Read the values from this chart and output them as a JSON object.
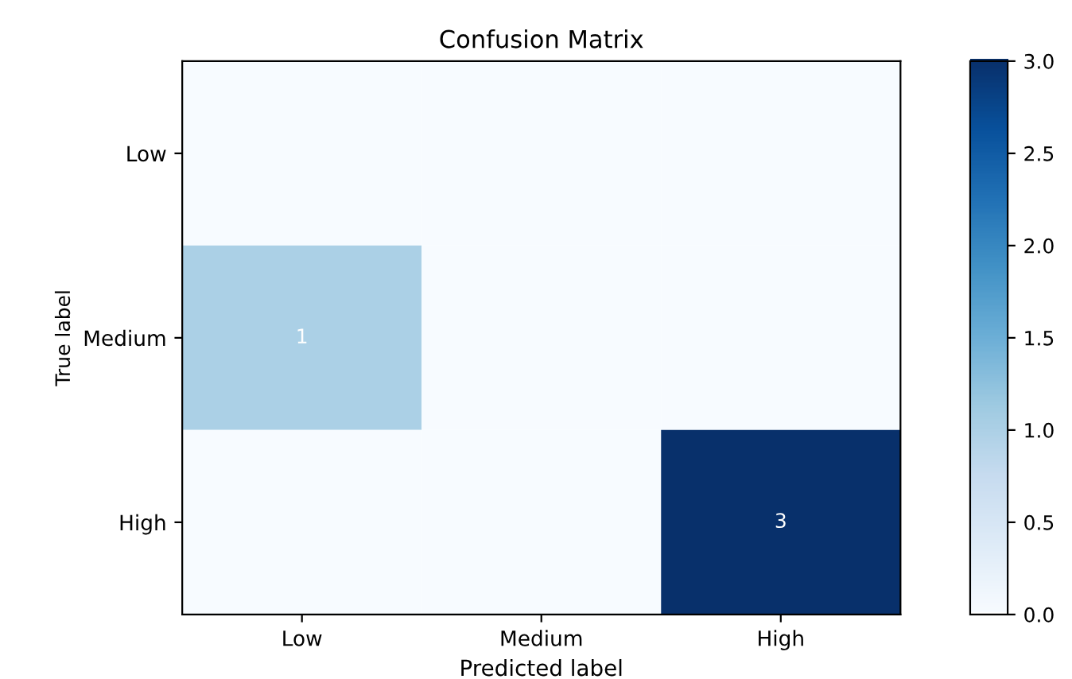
{
  "chart_data": {
    "type": "heatmap",
    "title": "Confusion Matrix",
    "xlabel": "Predicted label",
    "ylabel": "True label",
    "categories": [
      "Low",
      "Medium",
      "High"
    ],
    "y_categories": [
      "Low",
      "Medium",
      "High"
    ],
    "cells": [
      [
        0,
        0,
        0
      ],
      [
        1,
        0,
        0
      ],
      [
        0,
        0,
        3
      ]
    ],
    "cell_labels": [
      [
        null,
        null,
        null
      ],
      [
        "1",
        null,
        null
      ],
      [
        null,
        null,
        "3"
      ]
    ],
    "clim": [
      0,
      3
    ],
    "cticks": [
      {
        "value": 0,
        "label": "0.0"
      },
      {
        "value": 0.5,
        "label": "0.5"
      },
      {
        "value": 1,
        "label": "1.0"
      },
      {
        "value": 1.5,
        "label": "1.5"
      },
      {
        "value": 2,
        "label": "2.0"
      },
      {
        "value": 2.5,
        "label": "2.5"
      },
      {
        "value": 3,
        "label": "3.0"
      }
    ]
  }
}
